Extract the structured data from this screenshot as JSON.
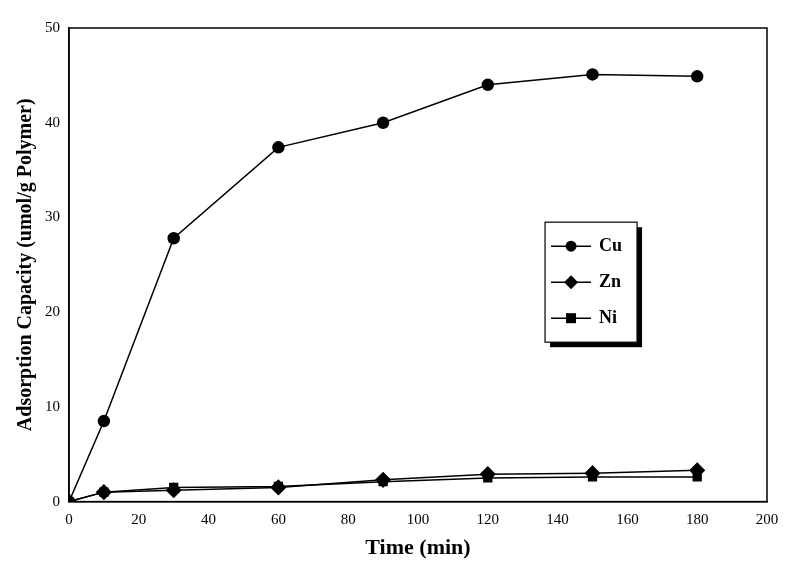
{
  "chart_data": {
    "type": "line",
    "x_label": "Time (min)",
    "y_label": "Adsorption Capacity (umol/g Polymer)",
    "x": [
      0,
      10,
      30,
      60,
      90,
      120,
      150,
      180
    ],
    "series": [
      {
        "name": "Cu",
        "color": "#000000",
        "marker": "circle",
        "values": [
          0,
          8.5,
          27.8,
          37.4,
          40.0,
          44.0,
          45.1,
          44.9
        ]
      },
      {
        "name": "Zn",
        "color": "#000000",
        "marker": "diamond",
        "values": [
          0,
          1.0,
          1.2,
          1.5,
          2.3,
          2.9,
          3.0,
          3.3
        ]
      },
      {
        "name": "Ni",
        "color": "#000000",
        "marker": "square",
        "values": [
          0,
          1.0,
          1.5,
          1.6,
          2.1,
          2.5,
          2.6,
          2.6
        ]
      }
    ],
    "xlim": [
      0,
      200
    ],
    "xticks": [
      0,
      20,
      40,
      60,
      80,
      100,
      120,
      140,
      160,
      180,
      200
    ],
    "ylim": [
      0,
      50
    ],
    "yticks": [
      0,
      10,
      20,
      30,
      40,
      50
    ],
    "grid": false,
    "legend": "right"
  }
}
